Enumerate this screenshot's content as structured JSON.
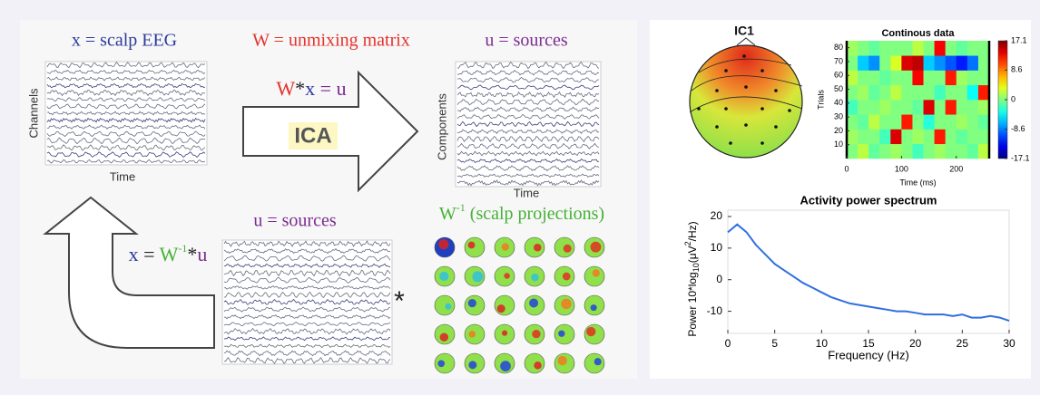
{
  "diagram": {
    "top_x": "x = scalp EEG",
    "top_w": "W = unmixing matrix",
    "top_u": "u = sources",
    "channels": "Channels",
    "time_left": "Time",
    "components": "Components",
    "time_right": "Time",
    "eq_w": "W",
    "eq_star": "*",
    "eq_x": "x",
    "eq_u": " = u",
    "ica": "ICA",
    "mid_u": "u = sources",
    "proj_w": "W",
    "proj_sup": "-1",
    "proj_rest": " (scalp projections)",
    "inv_x": "x",
    "inv_eq": " = ",
    "inv_w": "W",
    "inv_sup": "-1",
    "inv_star": "*",
    "inv_u": "u",
    "times": "*",
    "ic_label": "IC1"
  },
  "chart_data": [
    {
      "type": "heatmap",
      "title": "Continous data",
      "ylabel": "Trials",
      "xlabel": "Time (ms)",
      "xlim": [
        0,
        260
      ],
      "ylim": [
        0,
        85
      ],
      "xticks": [
        0,
        100,
        200
      ],
      "yticks": [
        10,
        20,
        30,
        40,
        50,
        60,
        70,
        80
      ],
      "clim": [
        -17.1,
        17.1
      ],
      "cticks": [
        -17.1,
        -8.6,
        0,
        8.6,
        17.1
      ],
      "values": [
        [
          0,
          2,
          -1,
          0,
          1,
          0,
          -2,
          0,
          1,
          0,
          0,
          -1,
          2
        ],
        [
          1,
          0,
          0,
          -2,
          14,
          0,
          1,
          0,
          12,
          0,
          -1,
          0,
          0
        ],
        [
          0,
          -1,
          2,
          0,
          0,
          12,
          0,
          -3,
          0,
          0,
          1,
          0,
          -1
        ],
        [
          -2,
          0,
          0,
          1,
          0,
          0,
          -1,
          14,
          0,
          12,
          0,
          0,
          1
        ],
        [
          0,
          1,
          -1,
          0,
          2,
          0,
          0,
          0,
          -2,
          0,
          0,
          -4,
          12
        ],
        [
          2,
          0,
          0,
          -1,
          0,
          0,
          13,
          0,
          0,
          12,
          1,
          0,
          0
        ],
        [
          0,
          -6,
          -8,
          0,
          3,
          14,
          15,
          -6,
          -8,
          -10,
          -12,
          -9,
          0
        ],
        [
          1,
          0,
          -1,
          0,
          0,
          0,
          2,
          0,
          13,
          0,
          -1,
          0,
          0
        ]
      ]
    },
    {
      "type": "line",
      "title": "Activity power spectrum",
      "xlabel": "Frequency (Hz)",
      "ylabel_parts": [
        "Power 10*log",
        "10",
        "(μ",
        "V",
        "2",
        "/Hz)"
      ],
      "color": "#2f6fe0",
      "xlim": [
        0,
        30
      ],
      "ylim": [
        -17,
        22
      ],
      "xticks": [
        0,
        5,
        10,
        15,
        20,
        25,
        30
      ],
      "yticks": [
        -10,
        0,
        10,
        20
      ],
      "x": [
        0,
        1,
        2,
        3,
        4,
        5,
        6,
        7,
        8,
        9,
        10,
        11,
        12,
        13,
        14,
        15,
        16,
        17,
        18,
        19,
        20,
        21,
        22,
        23,
        24,
        25,
        26,
        27,
        28,
        29,
        30
      ],
      "values": [
        15,
        17.5,
        15,
        11,
        8,
        5,
        3,
        1,
        -1,
        -2.5,
        -4,
        -5.5,
        -6.5,
        -7.5,
        -8,
        -8.5,
        -9,
        -9.5,
        -10,
        -10,
        -10.5,
        -11,
        -11,
        -11,
        -11.5,
        -11,
        -12,
        -12,
        -11.5,
        -12,
        -13
      ]
    }
  ]
}
